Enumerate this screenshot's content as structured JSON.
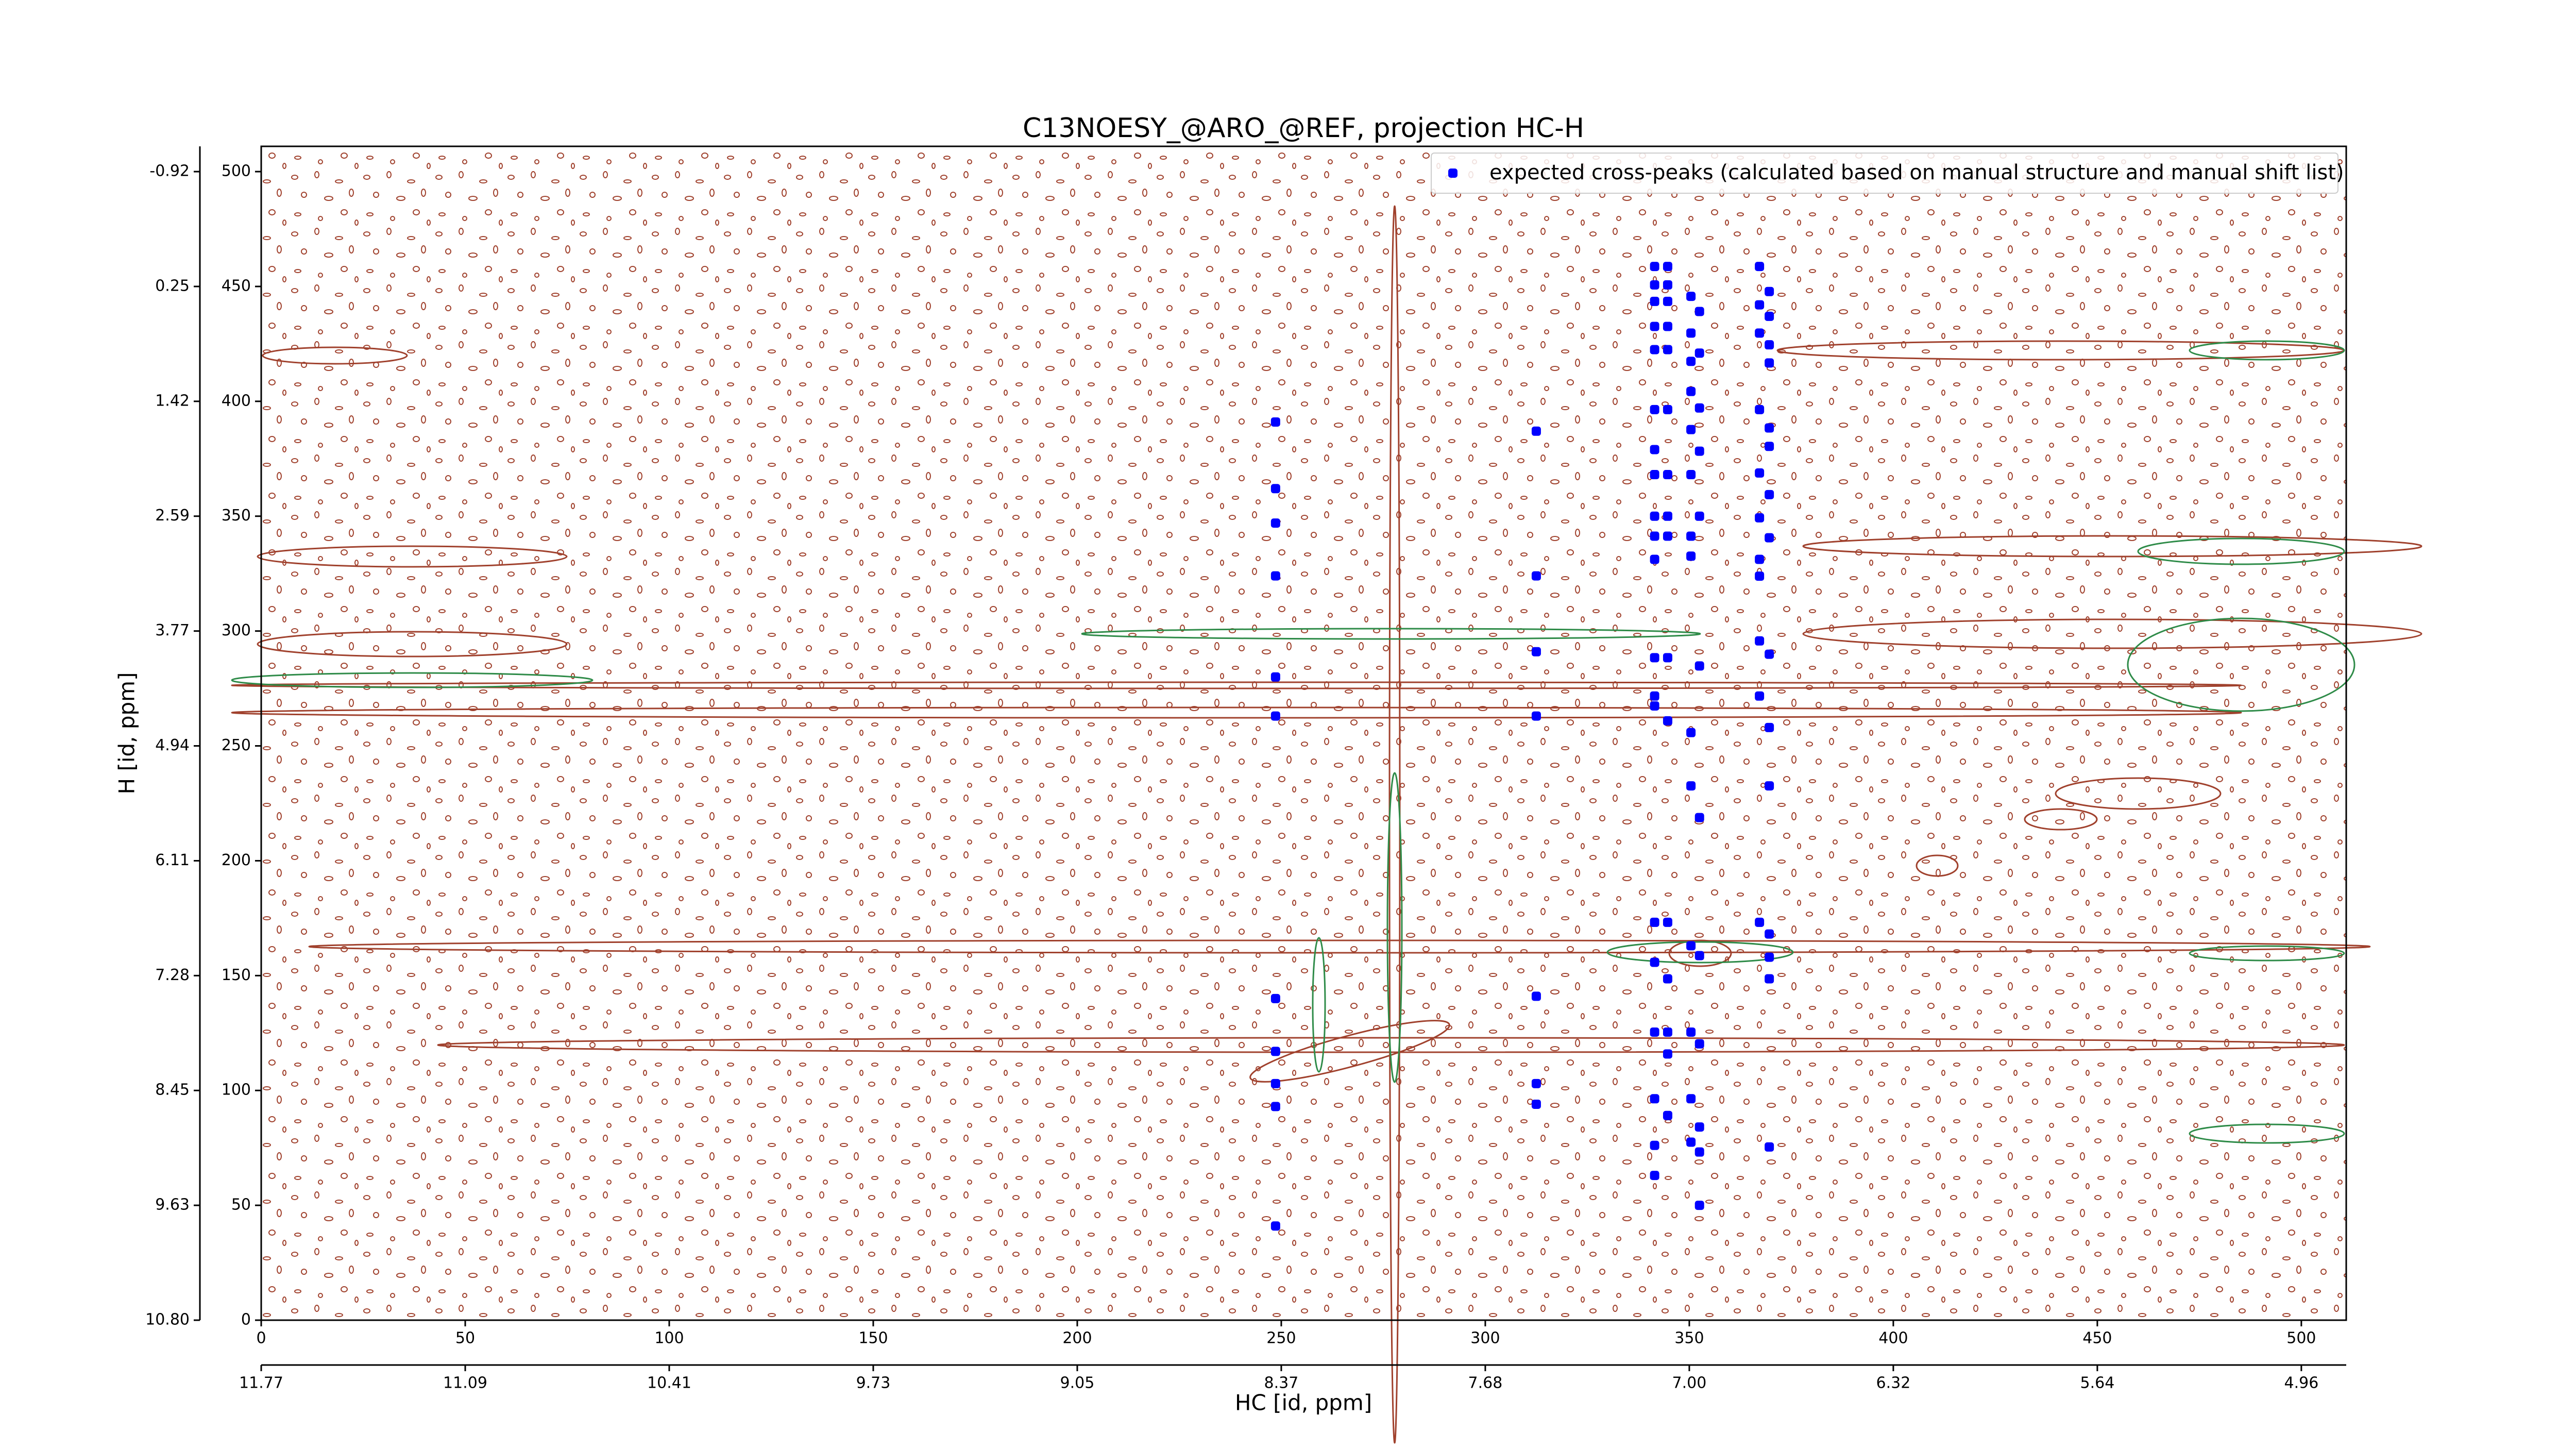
{
  "chart_data": {
    "type": "scatter",
    "title": "C13NOESY_@ARO_@REF, projection HC-H",
    "x_label": "HC [id, ppm]",
    "y_label": "H [id, ppm]",
    "xlim": [
      0,
      511
    ],
    "ylim": [
      0,
      511
    ],
    "xticks": [
      0,
      50,
      100,
      150,
      200,
      250,
      300,
      350,
      400,
      450,
      500
    ],
    "yticks": [
      0,
      50,
      100,
      150,
      200,
      250,
      300,
      350,
      400,
      450,
      500
    ],
    "x2ticks": [
      {
        "value": 0,
        "label": "11.77"
      },
      {
        "value": 50,
        "label": "11.09"
      },
      {
        "value": 100,
        "label": "10.41"
      },
      {
        "value": 150,
        "label": "9.73"
      },
      {
        "value": 200,
        "label": "9.05"
      },
      {
        "value": 250,
        "label": "8.37"
      },
      {
        "value": 300,
        "label": "7.68"
      },
      {
        "value": 350,
        "label": "7.00"
      },
      {
        "value": 400,
        "label": "6.32"
      },
      {
        "value": 450,
        "label": "5.64"
      },
      {
        "value": 500,
        "label": "4.96"
      }
    ],
    "y2ticks": [
      {
        "value": 0,
        "label": "10.80"
      },
      {
        "value": 50,
        "label": "9.63"
      },
      {
        "value": 100,
        "label": "8.45"
      },
      {
        "value": 150,
        "label": "7.28"
      },
      {
        "value": 200,
        "label": "6.11"
      },
      {
        "value": 250,
        "label": "4.94"
      },
      {
        "value": 300,
        "label": "3.77"
      },
      {
        "value": 350,
        "label": "2.59"
      },
      {
        "value": 400,
        "label": "1.42"
      },
      {
        "value": 450,
        "label": "0.25"
      },
      {
        "value": 500,
        "label": "-0.92"
      }
    ],
    "legend": "upper right",
    "series": [
      {
        "name": "expected cross-peaks (calculated based on manual structure and manual shift list)",
        "color": "#0000ff",
        "x": [
          248.6,
          248.6,
          248.6,
          248.6,
          248.6,
          248.6,
          248.6,
          248.6,
          248.6,
          248.6,
          248.6,
          312.5,
          312.5,
          312.5,
          312.5,
          312.5,
          312.5,
          312.5,
          341.5,
          344.7,
          341.5,
          344.7,
          341.5,
          344.7,
          341.5,
          344.7,
          341.5,
          344.7,
          341.5,
          344.7,
          341.5,
          341.5,
          344.7,
          341.5,
          344.7,
          341.5,
          344.7,
          341.5,
          341.5,
          344.7,
          341.5,
          341.5,
          344.7,
          341.5,
          344.7,
          341.5,
          344.7,
          341.5,
          344.7,
          344.7,
          341.5,
          344.7,
          341.5,
          341.5,
          350.4,
          352.5,
          350.4,
          352.5,
          350.4,
          350.4,
          352.5,
          350.4,
          352.5,
          350.4,
          352.5,
          350.4,
          350.4,
          352.5,
          350.4,
          350.4,
          352.5,
          350.4,
          352.5,
          350.4,
          352.5,
          350.4,
          352.5,
          350.4,
          352.5,
          352.5,
          367.2,
          369.6,
          367.2,
          369.6,
          367.2,
          369.6,
          369.6,
          367.2,
          369.6,
          369.6,
          367.2,
          369.6,
          367.2,
          369.6,
          367.2,
          367.2,
          367.2,
          369.6,
          367.2,
          369.6,
          369.6,
          367.2,
          369.6,
          369.6,
          369.6,
          369.6
        ],
        "values": [
          391,
          362,
          347,
          324,
          280,
          263,
          140,
          117,
          103,
          93,
          41,
          387,
          324,
          291,
          263,
          141,
          103,
          94,
          458.7,
          458.7,
          450.7,
          450.7,
          443.5,
          443.5,
          432.6,
          432.6,
          422.5,
          422.5,
          396.4,
          396.4,
          379.0,
          368.1,
          368.1,
          350.0,
          350.0,
          341.3,
          341.3,
          331.2,
          288.4,
          288.4,
          271.7,
          267.4,
          260.9,
          173.2,
          173.2,
          155.8,
          148.6,
          125.4,
          125.4,
          115.9,
          96.4,
          89.1,
          76.1,
          63.0,
          445.7,
          439.1,
          429.7,
          421.0,
          417.4,
          404.3,
          397.1,
          387.7,
          378.3,
          368.1,
          350.0,
          341.3,
          332.6,
          284.8,
          255.8,
          232.6,
          218.8,
          163.0,
          158.7,
          125.4,
          120.3,
          96.4,
          84.1,
          77.5,
          73.2,
          50.0,
          458.7,
          447.8,
          442.0,
          437.0,
          429.7,
          424.6,
          416.7,
          396.4,
          388.4,
          380.4,
          368.8,
          359.4,
          349.3,
          340.6,
          331.2,
          323.9,
          295.7,
          289.9,
          271.7,
          258.0,
          232.6,
          173.2,
          168.1,
          158.0,
          148.6,
          75.4
        ]
      }
    ]
  }
}
